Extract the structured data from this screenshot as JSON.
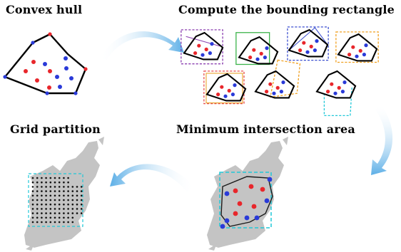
{
  "titles": {
    "convex_hull": "Convex hull",
    "bounding_rect": "Compute the bounding rectangle",
    "min_intersection": "Minimum intersection area",
    "grid_partition": "Grid partition"
  },
  "colors": {
    "hull_edge": "#000000",
    "point_red": "#e8262b",
    "point_blue": "#2a3ad8",
    "map_land": "#c4c4c4",
    "arrow_blue": "#5aaee6",
    "grid_dot": "#111111",
    "rect_colors": [
      "#8b3fb0",
      "#e8a020",
      "#3cb44b",
      "#3b4fd0",
      "#e84c4c",
      "#f0a020",
      "#20c8d8"
    ]
  },
  "icons": {
    "arrows": [
      "curved-arrow-icon",
      "curved-arrow-icon",
      "curved-arrow-icon"
    ]
  }
}
